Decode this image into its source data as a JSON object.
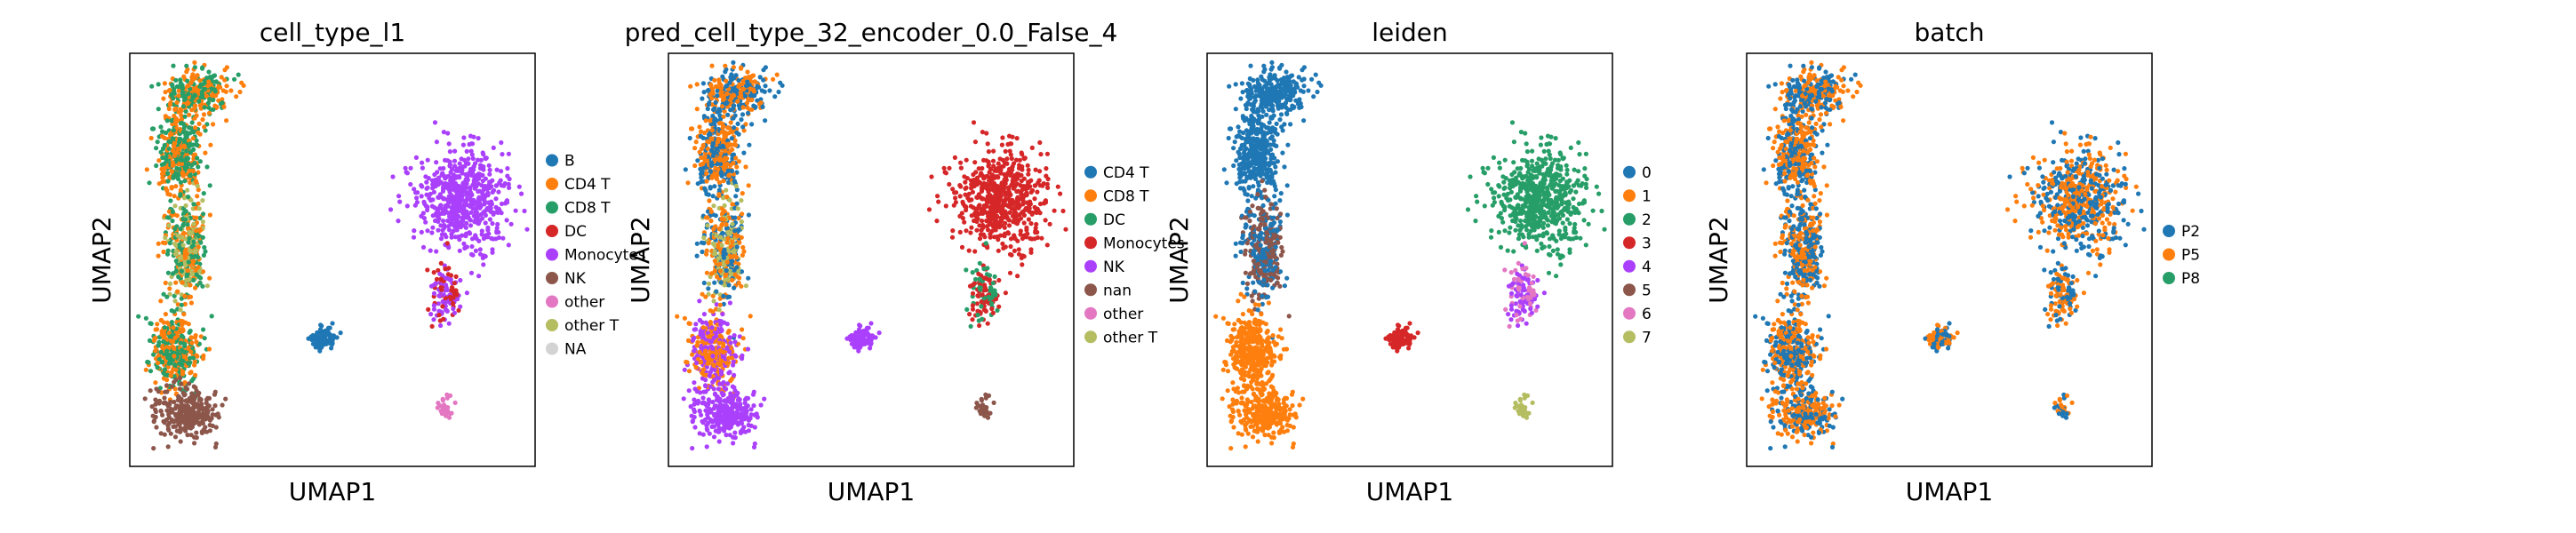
{
  "chart_data": [
    {
      "type": "scatter",
      "title": "cell_type_l1",
      "xlabel": "UMAP1",
      "ylabel": "UMAP2",
      "grid": false,
      "legend_position": "right",
      "color_by": "cell_type_l1",
      "categories": [
        {
          "name": "B",
          "color": "#1f77b4"
        },
        {
          "name": "CD4 T",
          "color": "#ff7f0e"
        },
        {
          "name": "CD8 T",
          "color": "#279e68"
        },
        {
          "name": "DC",
          "color": "#d62728"
        },
        {
          "name": "Monocytes",
          "color": "#aa40fc"
        },
        {
          "name": "NK",
          "color": "#8c564b"
        },
        {
          "name": "other",
          "color": "#e377c2"
        },
        {
          "name": "other T",
          "color": "#b5bd61"
        },
        {
          "name": "NA",
          "color": "#d3d3d3"
        }
      ],
      "regions": {
        "top_strip": [
          "CD8 T",
          "CD4 T"
        ],
        "upper_left_strip": [
          "CD4 T",
          "CD8 T"
        ],
        "middle_left_strip": [
          "CD8 T",
          "other T",
          "CD4 T"
        ],
        "lower_left_strip": [
          "CD8 T",
          "CD4 T"
        ],
        "bottom_left_blob": [
          "NK"
        ],
        "small_middle_cluster": [
          "B"
        ],
        "right_blob": [
          "Monocytes"
        ],
        "right_tail": [
          "DC",
          "Monocytes"
        ],
        "bottom_right_island": [
          "other"
        ]
      }
    },
    {
      "type": "scatter",
      "title": "pred_cell_type_32_encoder_0.0_False_4",
      "xlabel": "UMAP1",
      "ylabel": "UMAP2",
      "grid": false,
      "legend_position": "right",
      "color_by": "pred_cell_type_32_encoder_0.0_False_4",
      "categories": [
        {
          "name": "CD4 T",
          "color": "#1f77b4"
        },
        {
          "name": "CD8 T",
          "color": "#ff7f0e"
        },
        {
          "name": "DC",
          "color": "#279e68"
        },
        {
          "name": "Monocytes",
          "color": "#d62728"
        },
        {
          "name": "NK",
          "color": "#aa40fc"
        },
        {
          "name": "nan",
          "color": "#8c564b"
        },
        {
          "name": "other",
          "color": "#e377c2"
        },
        {
          "name": "other T",
          "color": "#b5bd61"
        }
      ],
      "regions": {
        "top_strip": [
          "CD8 T",
          "CD4 T"
        ],
        "upper_left_strip": [
          "CD4 T",
          "CD8 T"
        ],
        "middle_left_strip": [
          "CD8 T",
          "other T",
          "CD4 T"
        ],
        "lower_left_strip": [
          "CD8 T",
          "NK"
        ],
        "bottom_left_blob": [
          "NK"
        ],
        "small_middle_cluster": [
          "NK"
        ],
        "right_blob": [
          "Monocytes"
        ],
        "right_tail": [
          "DC",
          "Monocytes"
        ],
        "bottom_right_island": [
          "nan"
        ]
      }
    },
    {
      "type": "scatter",
      "title": "leiden",
      "xlabel": "UMAP1",
      "ylabel": "UMAP2",
      "grid": false,
      "legend_position": "right",
      "color_by": "leiden",
      "categories": [
        {
          "name": "0",
          "color": "#1f77b4"
        },
        {
          "name": "1",
          "color": "#ff7f0e"
        },
        {
          "name": "2",
          "color": "#279e68"
        },
        {
          "name": "3",
          "color": "#d62728"
        },
        {
          "name": "4",
          "color": "#aa40fc"
        },
        {
          "name": "5",
          "color": "#8c564b"
        },
        {
          "name": "6",
          "color": "#e377c2"
        },
        {
          "name": "7",
          "color": "#b5bd61"
        }
      ],
      "regions": {
        "top_strip": [
          "0"
        ],
        "upper_left_strip": [
          "0"
        ],
        "middle_left_strip": [
          "5",
          "0"
        ],
        "lower_left_strip": [
          "1"
        ],
        "bottom_left_blob": [
          "1"
        ],
        "small_middle_cluster": [
          "3"
        ],
        "right_blob": [
          "2"
        ],
        "right_tail": [
          "6",
          "4"
        ],
        "bottom_right_island": [
          "7"
        ]
      }
    },
    {
      "type": "scatter",
      "title": "batch",
      "xlabel": "UMAP1",
      "ylabel": "UMAP2",
      "grid": false,
      "legend_position": "right",
      "color_by": "batch",
      "categories": [
        {
          "name": "P2",
          "color": "#1f77b4"
        },
        {
          "name": "P5",
          "color": "#ff7f0e"
        },
        {
          "name": "P8",
          "color": "#279e68"
        }
      ],
      "regions": {
        "top_strip": [
          "P2",
          "P5"
        ],
        "upper_left_strip": [
          "P2",
          "P5"
        ],
        "middle_left_strip": [
          "P2",
          "P5"
        ],
        "lower_left_strip": [
          "P2",
          "P5"
        ],
        "bottom_left_blob": [
          "P2",
          "P5"
        ],
        "small_middle_cluster": [
          "P2",
          "P5"
        ],
        "right_blob": [
          "P2",
          "P5"
        ],
        "right_tail": [
          "P2",
          "P5"
        ],
        "bottom_right_island": [
          "P2",
          "P5"
        ]
      }
    }
  ]
}
